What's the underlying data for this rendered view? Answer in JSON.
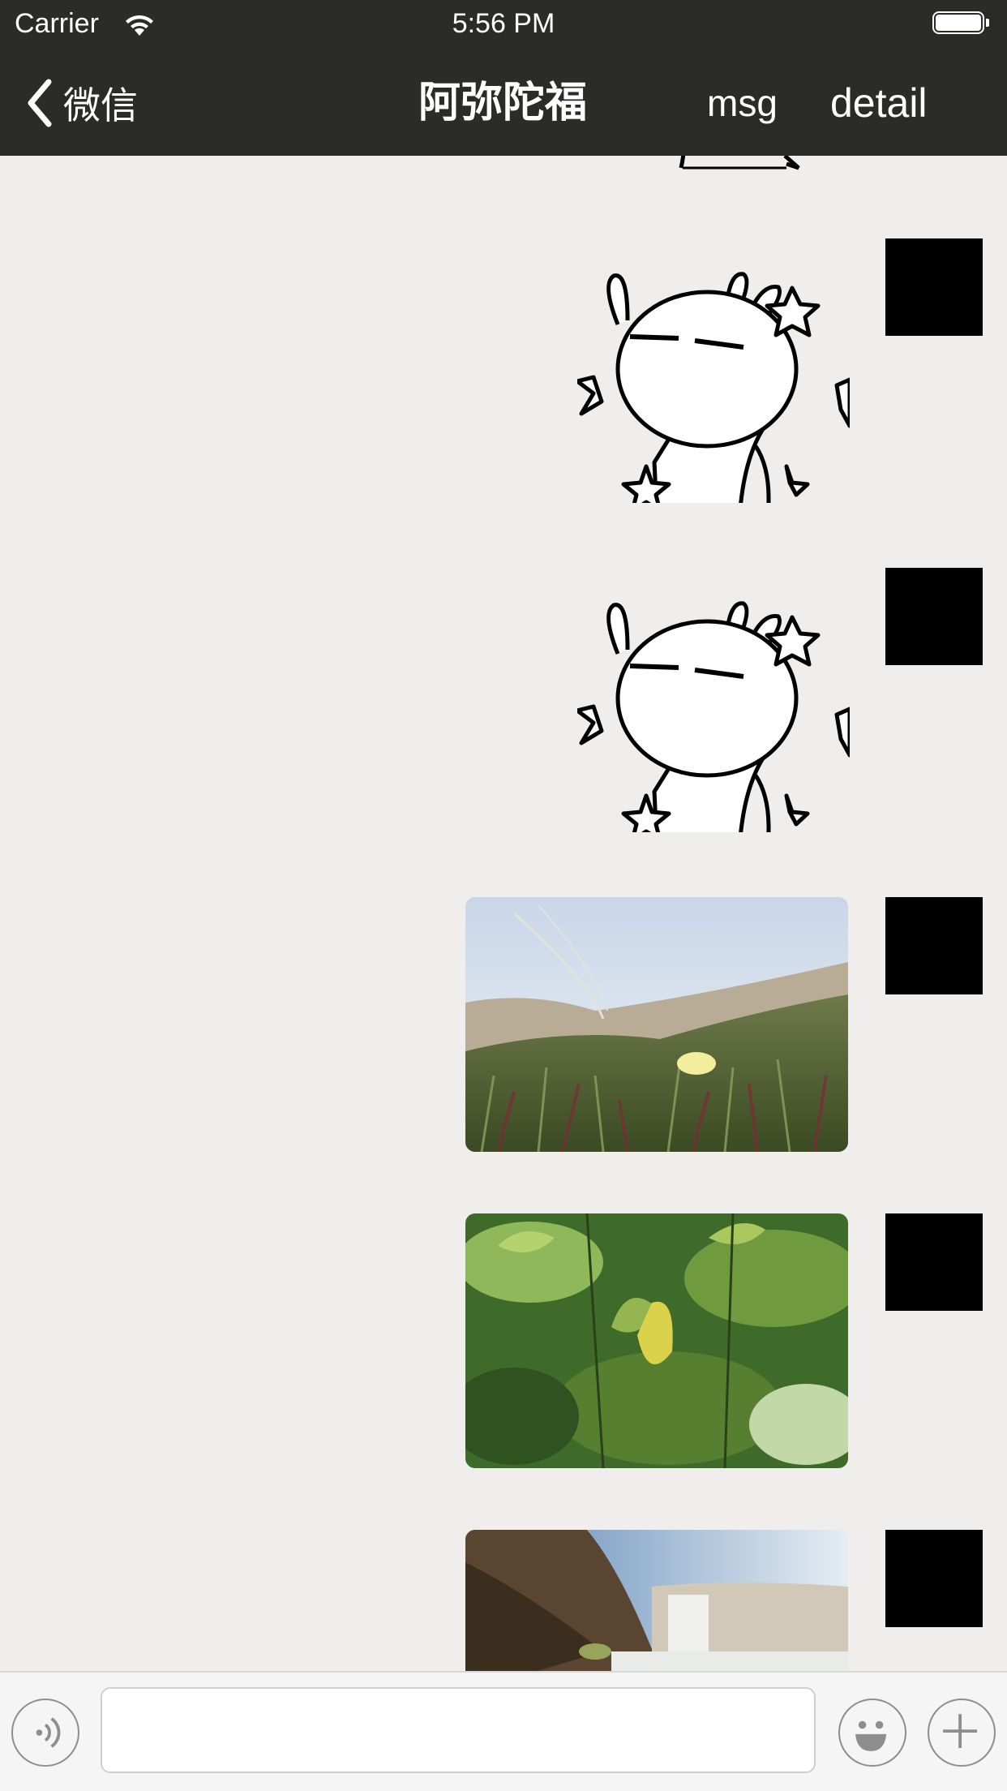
{
  "status_bar": {
    "carrier": "Carrier",
    "time": "5:56 PM",
    "wifi_icon": "wifi-icon",
    "battery_icon": "battery-full-icon"
  },
  "nav_bar": {
    "back_label": "微信",
    "title": "阿弥陀福",
    "msg_label": "msg",
    "detail_label": "detail",
    "background": "#2b2b29"
  },
  "chat": {
    "background": "#efeeed",
    "messages": [
      {
        "type": "sticker",
        "icon": "rabbit-sticker",
        "partial": true
      },
      {
        "type": "sticker",
        "icon": "rabbit-sticker"
      },
      {
        "type": "sticker",
        "icon": "rabbit-sticker"
      },
      {
        "type": "image",
        "icon": "beach-plants-photo"
      },
      {
        "type": "image",
        "icon": "green-leaves-photo"
      },
      {
        "type": "image",
        "icon": "waterfall-photo"
      }
    ]
  },
  "input_bar": {
    "text_value": "",
    "voice_icon": "voice-icon",
    "emoji_icon": "emoji-icon",
    "plus_icon": "plus-icon"
  }
}
